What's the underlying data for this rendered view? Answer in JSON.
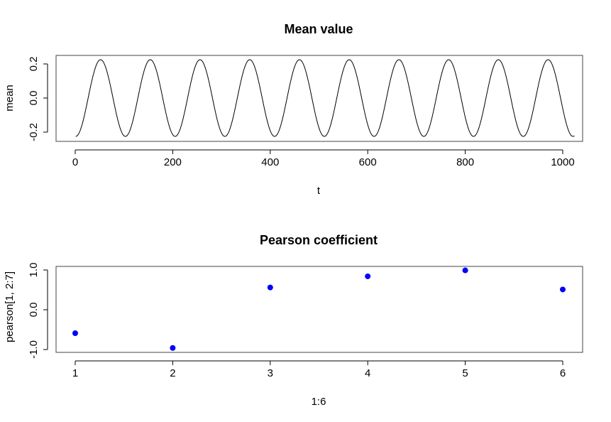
{
  "chart_data": [
    {
      "type": "line",
      "title": "Mean value",
      "xlabel": "t",
      "ylabel": "mean",
      "xlim": [
        0,
        1024
      ],
      "ylim": [
        -0.24,
        0.24
      ],
      "x_ticks": [
        "0",
        "200",
        "400",
        "600",
        "800",
        "1000"
      ],
      "y_ticks": [
        "-0.2",
        "0.0",
        "0.2"
      ],
      "series": [
        {
          "function": "y = -0.225 * cos(2*pi*(t - 1)/102)",
          "t_start": 1,
          "t_end": 1024,
          "amplitude": 0.225,
          "period": 102,
          "color": "#000000"
        }
      ],
      "grid": false
    },
    {
      "type": "scatter",
      "title": "Pearson coefficient",
      "xlabel": "1:6",
      "ylabel": "pearson[1, 2:7]",
      "xlim": [
        1,
        6
      ],
      "ylim": [
        -1.0,
        1.0
      ],
      "x_ticks": [
        "1",
        "2",
        "3",
        "4",
        "5",
        "6"
      ],
      "y_ticks": [
        "-1.0",
        "0.0",
        "1.0"
      ],
      "x": [
        1,
        2,
        3,
        4,
        5,
        6
      ],
      "y": [
        -0.59,
        -0.96,
        0.56,
        0.84,
        0.99,
        0.51
      ],
      "point_color": "#0000ff",
      "grid": false
    }
  ]
}
